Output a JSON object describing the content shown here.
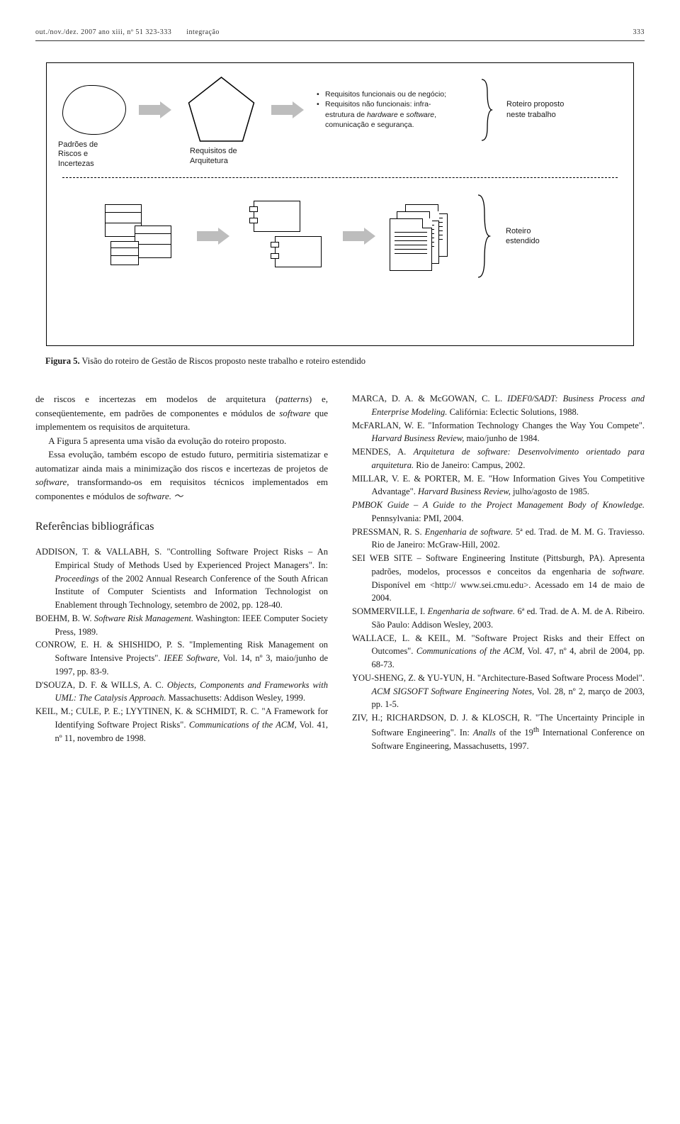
{
  "header": {
    "left": "out./nov./dez.  2007  ano xiii, nº 51  323-333",
    "center": "integração",
    "page": "333"
  },
  "figure": {
    "cloud_label": "Padrões de\nRiscos e\nIncertezas",
    "pentagon_label": "Requisitos de\nArquitetura",
    "bullet1": "Requisitos funcionais ou de negócio;",
    "bullet2_a": "Requisitos não funcionais: infra-",
    "bullet2_b": "estrutura de hardware e software,",
    "bullet2_c": "comunicação e segurança.",
    "roteiro_proposto": "Roteiro proposto\nneste trabalho",
    "roteiro_estendido": "Roteiro\nestendido",
    "caption_bold": "Figura 5.",
    "caption_rest": " Visão do roteiro de Gestão de Riscos proposto neste trabalho e roteiro estendido",
    "colors": {
      "arrow_fill": "#bdbdbd",
      "line": "#000000",
      "bg": "#ffffff"
    }
  },
  "left_col": {
    "p1": "de riscos e incertezas em modelos de arquitetura (patterns) e, conseqüentemente, em padrões de componentes e módulos de software que implementem os requisitos de arquitetura.",
    "p2": "A Figura 5 apresenta uma visão da evolução do roteiro proposto.",
    "p3": "Essa evolução, também escopo de estudo futuro, permitiria sistematizar e automatizar ainda mais a minimização dos riscos e incertezas de projetos de software, transformando-os em requisitos técnicos implementados em componentes e módulos de software. ",
    "refs_head": "Referências bibliográficas",
    "refs": [
      "ADDISON, T. & VALLABH, S. \"Controlling Software Project Risks – An Empirical Study of Methods Used by Experienced Project Managers\". In: Proceedings of the 2002 Annual Research Conference of the South African Institute of Computer Scientists and Information Technologist on Enablement through Technology, setembro de 2002, pp. 128-40.",
      "BOEHM, B. W. Software Risk Management. Washington: IEEE Computer Society Press, 1989.",
      "CONROW, E. H. & SHISHIDO, P. S. \"Implementing Risk Management on Software Intensive Projects\". IEEE Software, Vol. 14, nº 3, maio/junho de 1997, pp. 83-9.",
      "D'SOUZA, D. F. & WILLS, A. C. Objects, Components and Frameworks with UML: The Catalysis Approach. Massachusetts: Addison Wesley, 1999.",
      "KEIL, M.; CULE, P. E.; LYYTINEN, K. & SCHMIDT, R. C. \"A Framework for Identifying Software Project Risks\". Communications of the ACM, Vol. 41, nº 11, novembro de 1998."
    ]
  },
  "right_col": {
    "refs": [
      "MARCA, D. A. & McGOWAN, C. L. IDEF0/SADT: Business Process and Enterprise Modeling. Califórnia: Eclectic Solutions, 1988.",
      "McFARLAN, W. E. \"Information Technology Changes the Way You Compete\". Harvard Business Review, maio/junho de 1984.",
      "MENDES, A. Arquitetura de software: Desenvolvimento orientado para arquitetura. Rio de Janeiro: Campus, 2002.",
      "MILLAR, V. E. & PORTER, M. E. \"How Information Gives You Competitive Advantage\". Harvard Business Review, julho/agosto de 1985.",
      "PMBOK Guide – A Guide to the Project Management Body of Knowledge. Pennsylvania: PMI, 2004.",
      "PRESSMAN, R. S. Engenharia de software. 5ª ed. Trad. de M. M. G. Traviesso. Rio de Janeiro: McGraw-Hill, 2002.",
      "SEI WEB SITE – Software Engineering Institute (Pittsburgh, PA). Apresenta padrões, modelos, processos e conceitos da engenharia de software. Disponível em <http:// www.sei.cmu.edu>. Acessado em 14 de maio de 2004.",
      "SOMMERVILLE, I. Engenharia de software. 6ª ed. Trad. de A. M. de A. Ribeiro. São Paulo: Addison Wesley, 2003.",
      "WALLACE, L. & KEIL, M. \"Software Project Risks and their Effect on Outcomes\". Communications of the ACM, Vol. 47, nº 4, abril de 2004, pp. 68-73.",
      "YOU-SHENG, Z. & YU-YUN, H. \"Architecture-Based Software Process Model\". ACM SIGSOFT Software Engineering Notes, Vol. 28, nº 2, março de 2003, pp. 1-5.",
      "ZIV, H.; RICHARDSON, D. J. & KLOSCH, R. \"The Uncertainty Principle in Software Engineering\". In: Analls of the 19th International Conference on Software Engineering, Massachusetts, 1997."
    ]
  }
}
